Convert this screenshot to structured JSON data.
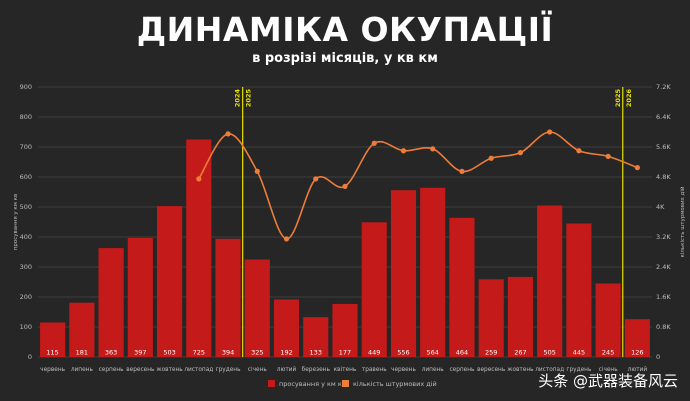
{
  "chart_data": {
    "type": "bar",
    "title": "ДИНАМІКА ОКУПАЦІЇ",
    "subtitle": "в розрізі місяців, у кв км",
    "categories": [
      "червень",
      "липень",
      "серпень",
      "вересень",
      "жовтень",
      "листопад",
      "грудень",
      "січень",
      "лютий",
      "березень",
      "квітень",
      "травень",
      "червень",
      "липень",
      "серпень",
      "вересень",
      "жовтень",
      "листопад",
      "грудень",
      "січень",
      "лютий"
    ],
    "series": [
      {
        "name": "просування у км кв",
        "type": "bar",
        "axis": "left",
        "values": [
          115,
          181,
          363,
          397,
          503,
          725,
          394,
          325,
          192,
          133,
          177,
          449,
          556,
          564,
          464,
          259,
          267,
          505,
          445,
          245,
          126
        ]
      },
      {
        "name": "кількість штурмових дій",
        "type": "line",
        "axis": "right",
        "values": [
          null,
          null,
          null,
          null,
          null,
          4750,
          5950,
          4950,
          3150,
          4750,
          4550,
          5700,
          5500,
          5550,
          4950,
          5300,
          5450,
          6000,
          5500,
          5350,
          5050
        ]
      }
    ],
    "ylabel_left": "просування у км кв",
    "ylabel_right": "кількість штурмових дій",
    "ylim_left": [
      0,
      900
    ],
    "ylim_right": [
      0,
      7200
    ],
    "yticks_left": [
      "0",
      "100",
      "200",
      "300",
      "400",
      "500",
      "600",
      "700",
      "800",
      "900"
    ],
    "yticks_right": [
      "0",
      "0.8K",
      "1.6K",
      "2.4K",
      "3.2K",
      "4K",
      "4.8K",
      "5.6K",
      "6.4K",
      "7.2K"
    ],
    "year_markers": [
      {
        "after_index": 6,
        "left_label": "2024",
        "right_label": "2025"
      },
      {
        "after_index": 19,
        "left_label": "2025",
        "right_label": "2026"
      }
    ],
    "grid": true,
    "legend_position": "bottom-center",
    "colors": {
      "bar": "#c41a1a",
      "line": "#ee7d3a",
      "marker": "#e8e000",
      "background": "#262626"
    }
  },
  "watermark": "头条 @武器装备风云"
}
